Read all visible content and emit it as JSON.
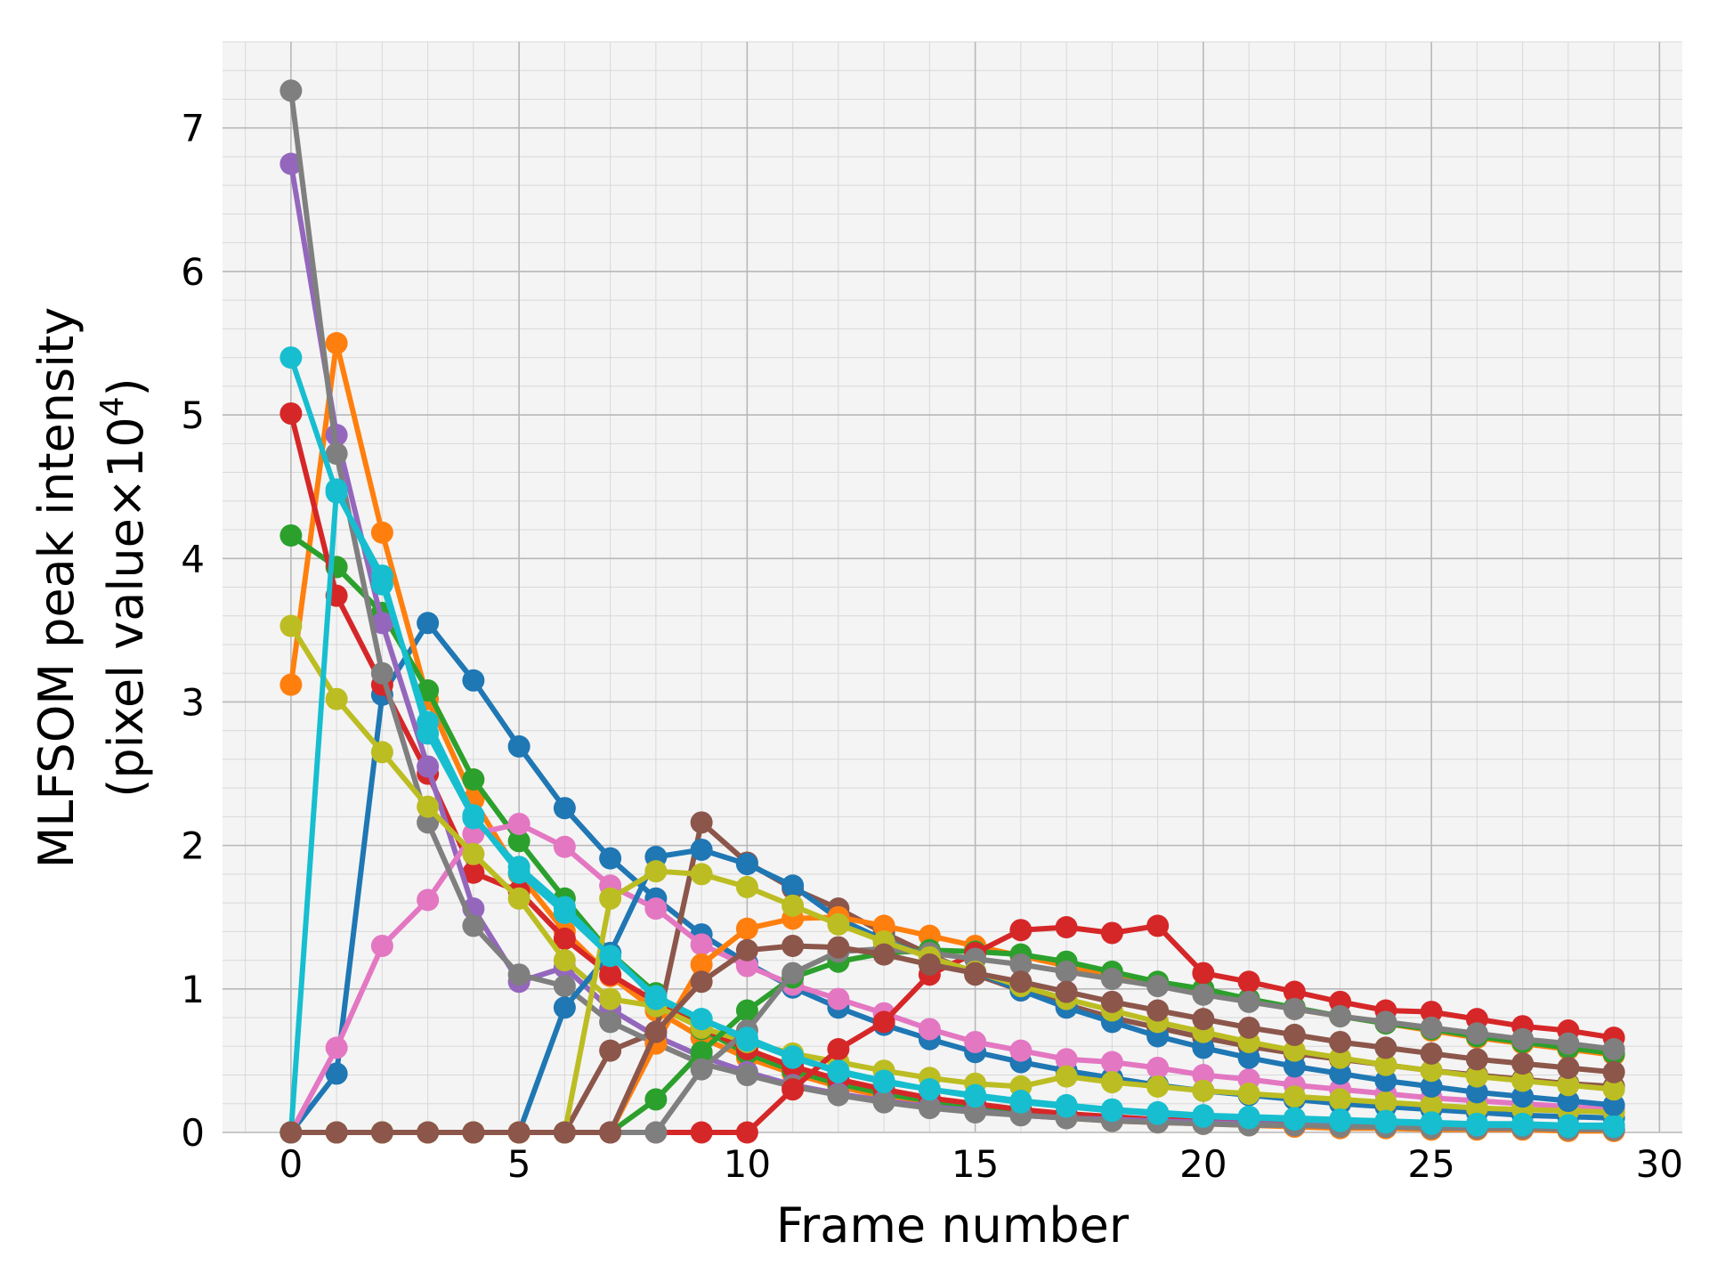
{
  "chart_data": {
    "type": "line",
    "title": "",
    "xlabel": "Frame number",
    "ylabel_line1": "MLFSOM peak intensity",
    "ylabel_line2_prefix": "(pixel value×10",
    "ylabel_line2_exp": "4",
    "ylabel_line2_suffix": ")",
    "xlim": [
      -1.5,
      30.5
    ],
    "ylim": [
      0,
      7.6
    ],
    "xticks": [
      0,
      5,
      10,
      15,
      20,
      25,
      30
    ],
    "yticks": [
      0,
      1,
      2,
      3,
      4,
      5,
      6,
      7
    ],
    "grid": true,
    "minor_grid": true,
    "legend": "none",
    "background": "#f4f4f4",
    "x": [
      0,
      1,
      2,
      3,
      4,
      5,
      6,
      7,
      8,
      9,
      10,
      11,
      12,
      13,
      14,
      15,
      16,
      17,
      18,
      19,
      20,
      21,
      22,
      23,
      24,
      25,
      26,
      27,
      28,
      29
    ],
    "series": [
      {
        "color": "#1f77b4",
        "values": [
          0,
          0.41,
          3.05,
          3.55,
          3.15,
          2.69,
          2.26,
          1.91,
          1.63,
          1.38,
          1.18,
          1.01,
          0.87,
          0.75,
          0.65,
          0.56,
          0.49,
          0.43,
          0.38,
          0.33,
          0.29,
          0.26,
          0.23,
          0.2,
          0.18,
          0.16,
          0.14,
          0.12,
          0.11,
          0.1
        ]
      },
      {
        "color": "#ff7f0e",
        "values": [
          3.12,
          5.5,
          4.18,
          3.02,
          2.32,
          1.8,
          1.4,
          1.09,
          0.85,
          0.66,
          0.52,
          0.41,
          0.32,
          0.25,
          0.2,
          0.16,
          0.13,
          0.1,
          0.08,
          0.07,
          0.06,
          0.05,
          0.04,
          0.03,
          0.03,
          0.02,
          0.02,
          0.02,
          0.01,
          0.01
        ]
      },
      {
        "color": "#2ca02c",
        "values": [
          4.16,
          3.94,
          3.62,
          3.08,
          2.46,
          2.03,
          1.63,
          1.25,
          0.97,
          0.72,
          0.55,
          0.43,
          0.34,
          0.27,
          0.22,
          0.18,
          0.15,
          0.12,
          0.1,
          0.09,
          0.08,
          0.07,
          0.06,
          0.05,
          0.04,
          0.04,
          0.03,
          0.03,
          0.03,
          0.02
        ]
      },
      {
        "color": "#d62728",
        "values": [
          5.01,
          3.74,
          3.12,
          2.5,
          1.81,
          1.68,
          1.35,
          1.1,
          0.91,
          0.73,
          0.58,
          0.46,
          0.37,
          0.3,
          0.24,
          0.2,
          0.16,
          0.13,
          0.11,
          0.09,
          0.08,
          0.07,
          0.06,
          0.05,
          0.04,
          0.04,
          0.03,
          0.03,
          0.03,
          0.02
        ]
      },
      {
        "color": "#9467bd",
        "values": [
          6.75,
          4.86,
          3.55,
          2.55,
          1.56,
          1.05,
          1.15,
          0.86,
          0.67,
          0.53,
          0.42,
          0.33,
          0.27,
          0.22,
          0.18,
          0.15,
          0.12,
          0.1,
          0.09,
          0.08,
          0.07,
          0.06,
          0.05,
          0.05,
          0.04,
          0.04,
          0.03,
          0.03,
          0.03,
          0.03
        ]
      },
      {
        "color": "#8c564b",
        "values": [
          0,
          0,
          0,
          0,
          0,
          0,
          0,
          0.57,
          0.7,
          2.16,
          1.88,
          1.7,
          1.56,
          1.39,
          1.24,
          1.1,
          0.99,
          0.89,
          0.8,
          0.73,
          0.66,
          0.6,
          0.55,
          0.51,
          0.47,
          0.43,
          0.4,
          0.37,
          0.34,
          0.32
        ]
      },
      {
        "color": "#e377c2",
        "values": [
          0,
          0.59,
          1.3,
          1.62,
          2.08,
          2.15,
          1.99,
          1.72,
          1.56,
          1.31,
          1.16,
          1.03,
          0.93,
          0.83,
          0.72,
          0.63,
          0.57,
          0.51,
          0.49,
          0.45,
          0.4,
          0.37,
          0.33,
          0.3,
          0.27,
          0.24,
          0.22,
          0.2,
          0.18,
          0.16
        ]
      },
      {
        "color": "#7f7f7f",
        "values": [
          7.26,
          4.73,
          3.2,
          2.16,
          1.44,
          1.1,
          1.02,
          0.77,
          0.62,
          0.48,
          0.4,
          0.32,
          0.26,
          0.21,
          0.17,
          0.14,
          0.12,
          0.1,
          0.08,
          0.07,
          0.06,
          0.05,
          0.05,
          0.04,
          0.04,
          0.03,
          0.03,
          0.03,
          0.02,
          0.02
        ]
      },
      {
        "color": "#bcbd22",
        "values": [
          3.53,
          3.02,
          2.65,
          2.27,
          1.94,
          1.63,
          1.2,
          0.93,
          0.88,
          0.73,
          0.63,
          0.55,
          0.49,
          0.43,
          0.38,
          0.34,
          0.32,
          0.39,
          0.35,
          0.32,
          0.29,
          0.27,
          0.25,
          0.23,
          0.21,
          0.19,
          0.17,
          0.16,
          0.15,
          0.14
        ]
      },
      {
        "color": "#17becf",
        "values": [
          5.4,
          4.46,
          3.88,
          2.78,
          2.19,
          1.85,
          1.57,
          1.25,
          0.93,
          0.79,
          0.64,
          0.52,
          0.42,
          0.35,
          0.3,
          0.26,
          0.22,
          0.19,
          0.16,
          0.14,
          0.12,
          0.11,
          0.1,
          0.09,
          0.08,
          0.07,
          0.06,
          0.06,
          0.05,
          0.05
        ]
      },
      {
        "color": "#1f77b4",
        "values": [
          0,
          0,
          0,
          0,
          0,
          0,
          0.87,
          1.25,
          1.92,
          1.97,
          1.87,
          1.72,
          1.49,
          1.34,
          1.22,
          1.12,
          0.99,
          0.87,
          0.77,
          0.67,
          0.59,
          0.52,
          0.46,
          0.41,
          0.36,
          0.32,
          0.28,
          0.25,
          0.22,
          0.19
        ]
      },
      {
        "color": "#ff7f0e",
        "values": [
          0,
          0,
          0,
          0,
          0,
          0,
          0,
          0,
          0.62,
          1.17,
          1.42,
          1.49,
          1.5,
          1.44,
          1.37,
          1.3,
          1.23,
          1.16,
          1.1,
          1.04,
          0.98,
          0.92,
          0.86,
          0.81,
          0.76,
          0.71,
          0.66,
          0.62,
          0.58,
          0.54
        ]
      },
      {
        "color": "#2ca02c",
        "values": [
          0,
          0,
          0,
          0,
          0,
          0,
          0,
          0,
          0.23,
          0.56,
          0.85,
          1.08,
          1.19,
          1.25,
          1.27,
          1.26,
          1.24,
          1.19,
          1.12,
          1.05,
          1.0,
          0.93,
          0.87,
          0.81,
          0.76,
          0.72,
          0.67,
          0.63,
          0.59,
          0.55
        ]
      },
      {
        "color": "#d62728",
        "values": [
          0,
          0,
          0,
          0,
          0,
          0,
          0,
          0,
          0,
          0,
          0,
          0.3,
          0.58,
          0.77,
          1.1,
          1.25,
          1.41,
          1.43,
          1.39,
          1.44,
          1.11,
          1.05,
          0.98,
          0.91,
          0.85,
          0.84,
          0.79,
          0.74,
          0.71,
          0.66
        ]
      },
      {
        "color": "#7f7f7f",
        "values": [
          0,
          0,
          0,
          0,
          0,
          0,
          0,
          0,
          0,
          0.44,
          0.71,
          1.11,
          1.26,
          1.28,
          1.25,
          1.21,
          1.17,
          1.12,
          1.07,
          1.02,
          0.96,
          0.91,
          0.86,
          0.81,
          0.77,
          0.73,
          0.69,
          0.65,
          0.62,
          0.58
        ]
      },
      {
        "color": "#bcbd22",
        "values": [
          0,
          0,
          0,
          0,
          0,
          0,
          0,
          1.63,
          1.82,
          1.8,
          1.71,
          1.58,
          1.45,
          1.33,
          1.22,
          1.12,
          1.02,
          0.93,
          0.85,
          0.77,
          0.7,
          0.63,
          0.57,
          0.52,
          0.47,
          0.43,
          0.39,
          0.36,
          0.33,
          0.3
        ]
      },
      {
        "color": "#17becf",
        "values": [
          0,
          4.48,
          3.82,
          2.86,
          2.21,
          1.81,
          1.53,
          1.23,
          0.95,
          0.79,
          0.66,
          0.53,
          0.43,
          0.36,
          0.3,
          0.25,
          0.21,
          0.18,
          0.15,
          0.13,
          0.11,
          0.1,
          0.09,
          0.08,
          0.07,
          0.06,
          0.05,
          0.05,
          0.04,
          0.04
        ]
      },
      {
        "color": "#8c564b",
        "values": [
          0,
          0,
          0,
          0,
          0,
          0,
          0,
          0,
          0.7,
          1.05,
          1.27,
          1.3,
          1.29,
          1.24,
          1.17,
          1.11,
          1.05,
          0.98,
          0.91,
          0.85,
          0.79,
          0.73,
          0.68,
          0.63,
          0.59,
          0.55,
          0.51,
          0.48,
          0.45,
          0.42
        ]
      }
    ]
  }
}
